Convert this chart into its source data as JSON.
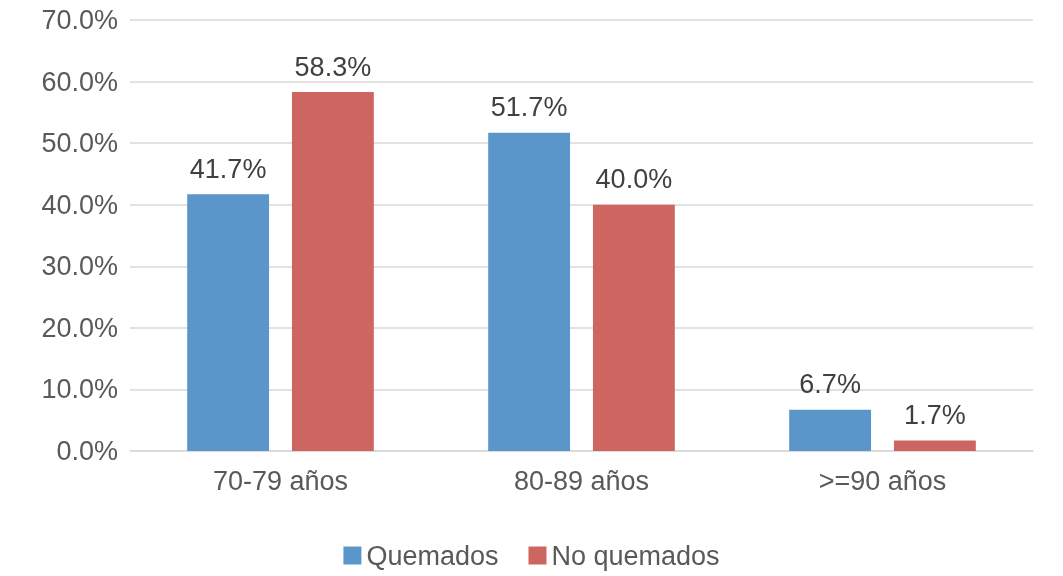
{
  "chart_data": {
    "type": "bar",
    "categories": [
      "70-79 años",
      "80-89 años",
      ">=90 años"
    ],
    "series": [
      {
        "name": "Quemados",
        "color": "#5b96cb",
        "values": [
          41.7,
          51.7,
          6.7
        ],
        "value_labels": [
          "41.7%",
          "51.7%",
          "6.7%"
        ]
      },
      {
        "name": "No quemados",
        "color": "#cd6560",
        "values": [
          58.3,
          40.0,
          1.7
        ],
        "value_labels": [
          "58.3%",
          "40.0%",
          "1.7%"
        ]
      }
    ],
    "ylim": [
      0,
      70
    ],
    "yticks": [
      {
        "value": 0,
        "label": "0.0%"
      },
      {
        "value": 10,
        "label": "10.0%"
      },
      {
        "value": 20,
        "label": "20.0%"
      },
      {
        "value": 30,
        "label": "30.0%"
      },
      {
        "value": 40,
        "label": "40.0%"
      },
      {
        "value": 50,
        "label": "50.0%"
      },
      {
        "value": 60,
        "label": "60.0%"
      },
      {
        "value": 70,
        "label": "70.0%"
      }
    ],
    "grid": "y",
    "legend": "bottom"
  }
}
